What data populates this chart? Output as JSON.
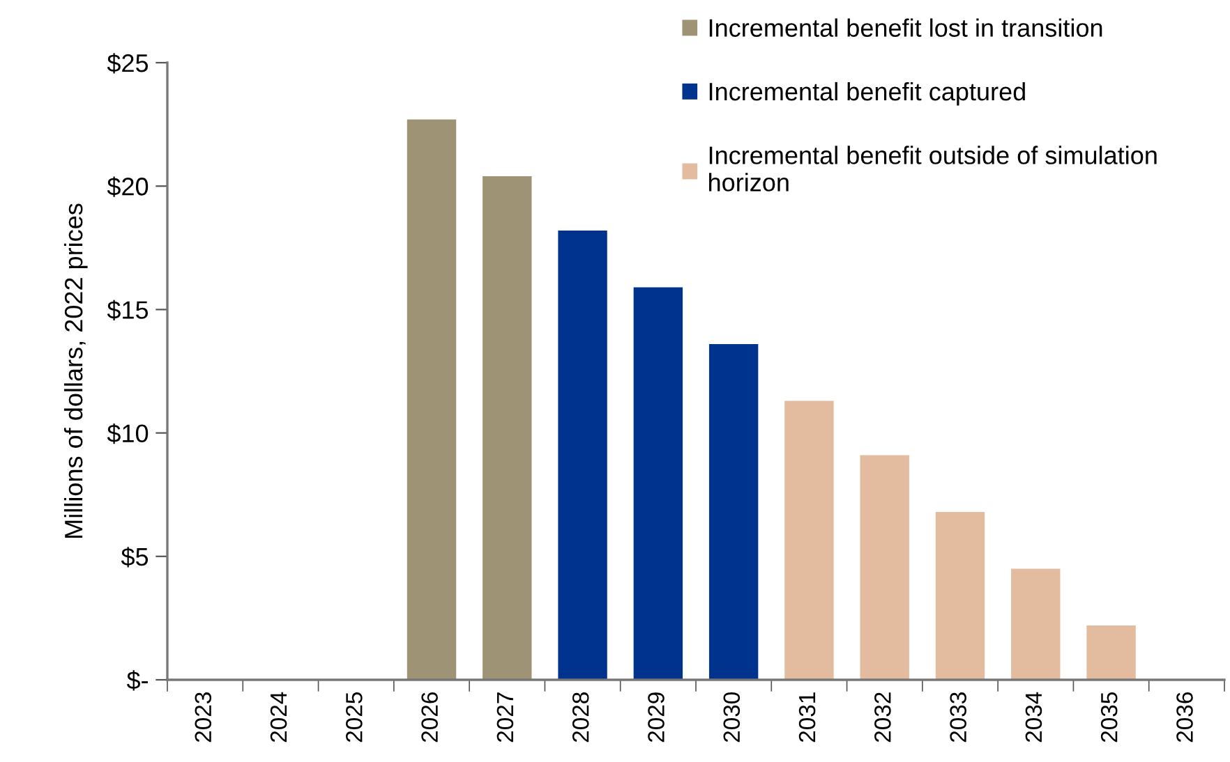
{
  "chart_data": {
    "type": "bar",
    "ylabel": "Millions of dollars, 2022 prices",
    "categories": [
      "2023",
      "2024",
      "2025",
      "2026",
      "2027",
      "2028",
      "2029",
      "2030",
      "2031",
      "2032",
      "2033",
      "2034",
      "2035",
      "2036"
    ],
    "series": [
      {
        "name": "Incremental benefit lost in transition",
        "color": "#9e9475",
        "values": [
          null,
          null,
          null,
          22.7,
          20.4,
          null,
          null,
          null,
          null,
          null,
          null,
          null,
          null,
          null
        ]
      },
      {
        "name": "Incremental benefit captured",
        "color": "#00338d",
        "values": [
          null,
          null,
          null,
          null,
          null,
          18.2,
          15.9,
          13.6,
          null,
          null,
          null,
          null,
          null,
          null
        ]
      },
      {
        "name": "Incremental benefit outside of simulation\nhorizon",
        "color": "#e3bb9e",
        "values": [
          null,
          null,
          null,
          null,
          null,
          null,
          null,
          null,
          11.3,
          9.1,
          6.8,
          4.5,
          2.2,
          null
        ]
      }
    ],
    "ylim": [
      0,
      25
    ],
    "yticks": [
      {
        "value": 0,
        "label": "$-"
      },
      {
        "value": 5,
        "label": "$5"
      },
      {
        "value": 10,
        "label": "$10"
      },
      {
        "value": 15,
        "label": "$15"
      },
      {
        "value": 20,
        "label": "$20"
      },
      {
        "value": 25,
        "label": "$25"
      }
    ],
    "grid": false,
    "legend": "top right"
  }
}
